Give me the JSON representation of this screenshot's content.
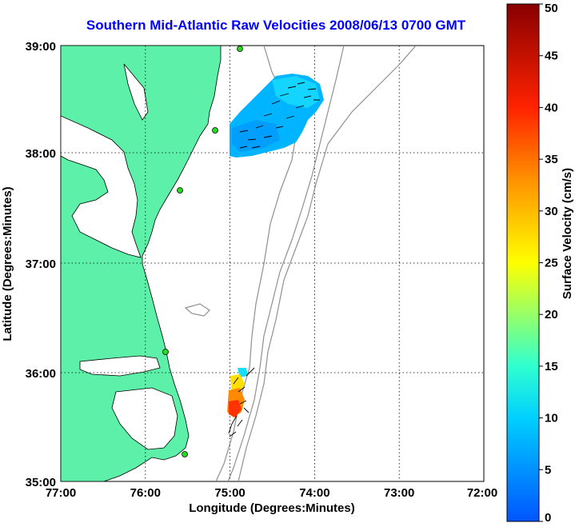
{
  "title": "Southern Mid-Atlantic Raw Velocities 2008/06/13 0700 GMT",
  "x_axis": {
    "label": "Longitude (Degrees:Minutes)",
    "ticks": [
      "77:00",
      "76:00",
      "75:00",
      "74:00",
      "73:00",
      "72:00"
    ]
  },
  "y_axis": {
    "label": "Latitude (Degrees:Minutes)",
    "ticks": [
      "39:00",
      "38:00",
      "37:00",
      "36:00",
      "35:00"
    ]
  },
  "colorbar": {
    "label": "Surface Velocity (cm/s)",
    "ticks": [
      "0",
      "5",
      "10",
      "15",
      "20",
      "25",
      "30",
      "35",
      "40",
      "45",
      "50"
    ],
    "min": 0,
    "max": 50
  },
  "colors": {
    "land": "#5cf0a8",
    "coast": "#000000",
    "bathymetry": "#909090",
    "title": "#0000ff",
    "station": "#22dd22"
  }
}
